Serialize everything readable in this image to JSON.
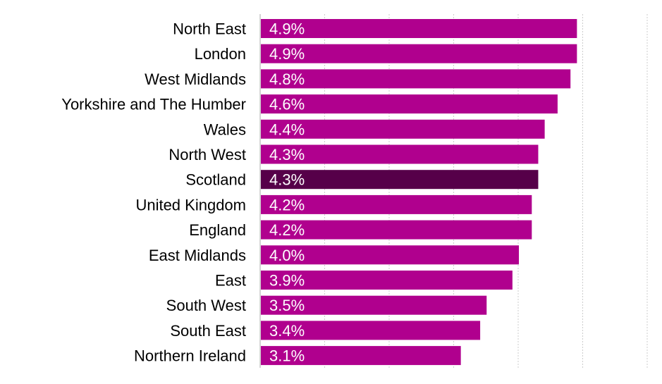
{
  "chart_data": {
    "type": "bar",
    "orientation": "horizontal",
    "categories": [
      "North East",
      "London",
      "West Midlands",
      "Yorkshire and The Humber",
      "Wales",
      "North West",
      "Scotland",
      "United Kingdom",
      "England",
      "East Midlands",
      "East",
      "South West",
      "South East",
      "Northern Ireland"
    ],
    "values": [
      4.9,
      4.9,
      4.8,
      4.6,
      4.4,
      4.3,
      4.3,
      4.2,
      4.2,
      4.0,
      3.9,
      3.5,
      3.4,
      3.1
    ],
    "data_labels": [
      "4.9%",
      "4.9%",
      "4.8%",
      "4.6%",
      "4.4%",
      "4.3%",
      "4.3%",
      "4.2%",
      "4.2%",
      "4.0%",
      "3.9%",
      "3.5%",
      "3.4%",
      "3.1%"
    ],
    "highlight_category": "Scotland",
    "xlim": [
      0,
      6
    ],
    "gridlines": "vertical",
    "title": "",
    "xlabel": "",
    "ylabel": "",
    "colors": {
      "bar": "#b0008e",
      "highlight": "#560049",
      "gridline": "#cccccc",
      "axis": "#aaaaaa",
      "data_label": "#ffffff",
      "category_label": "#000000"
    }
  }
}
